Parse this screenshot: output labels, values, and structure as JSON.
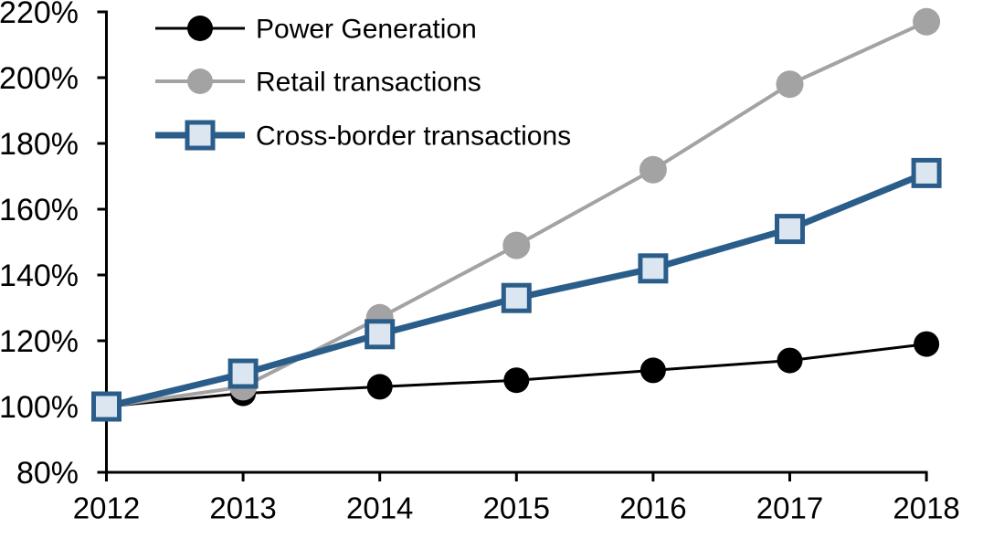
{
  "chart_data": {
    "type": "line",
    "title": "",
    "categories": [
      "2012",
      "2013",
      "2014",
      "2015",
      "2016",
      "2017",
      "2018"
    ],
    "xlabel": "",
    "ylabel": "",
    "ylim": [
      80,
      220
    ],
    "y_ticks": [
      80,
      100,
      120,
      140,
      160,
      180,
      200,
      220
    ],
    "y_tick_labels": [
      "80%",
      "100%",
      "120%",
      "140%",
      "160%",
      "180%",
      "200%",
      "220%"
    ],
    "grid": false,
    "legend_position": "top-left",
    "axis_color": "#000000",
    "background": "#FFFFFF",
    "series": [
      {
        "name": "Power Generation",
        "color": "#000000",
        "marker": "circle",
        "marker_fill": "#000000",
        "line_width": 3,
        "values": [
          100,
          104,
          106,
          108,
          111,
          114,
          119
        ]
      },
      {
        "name": "Retail transactions",
        "color": "#A3A3A3",
        "marker": "circle",
        "marker_fill": "#A3A3A3",
        "line_width": 4,
        "values": [
          100,
          106,
          127,
          149,
          172,
          198,
          217
        ]
      },
      {
        "name": "Cross-border transactions",
        "color": "#2A5D8A",
        "marker": "square",
        "marker_fill": "#DCE6F1",
        "line_width": 7,
        "values": [
          100,
          110,
          122,
          133,
          142,
          154,
          171
        ]
      }
    ]
  }
}
